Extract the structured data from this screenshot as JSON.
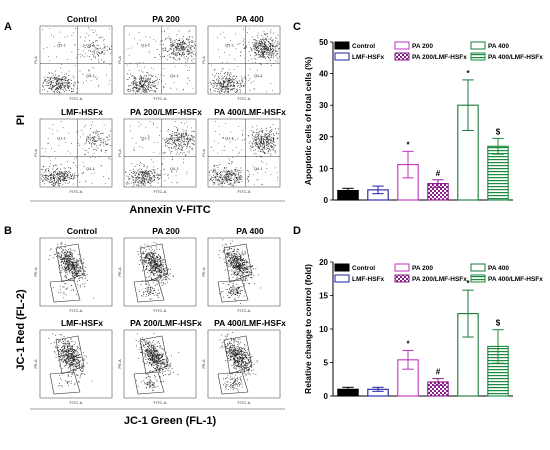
{
  "panels": {
    "A": {
      "letter": "A",
      "y_label": "PI",
      "x_label": "Annexin V-FITC",
      "plots": [
        {
          "title": "Control",
          "quadrants": [
            "Q1-1",
            "Q2-1",
            "Q3-1",
            "Q4-1"
          ]
        },
        {
          "title": "PA 200",
          "quadrants": [
            "Q1-1",
            "Q2-1",
            "Q3-1",
            "Q4-1"
          ]
        },
        {
          "title": "PA 400",
          "quadrants": [
            "Q1-1",
            "Q2-1",
            "Q3-1",
            "Q4-1"
          ]
        },
        {
          "title": "LMF-HSFx",
          "quadrants": [
            "Q1-1",
            "Q2-1",
            "Q3-1",
            "Q4-1"
          ]
        },
        {
          "title": "PA 200/LMF-HSFx",
          "quadrants": [
            "Q1-1",
            "Q2-1",
            "Q3-1",
            "Q4-1"
          ]
        },
        {
          "title": "PA 400/LMF-HSFx",
          "quadrants": [
            "Q1-1",
            "Q2-1",
            "Q3-1",
            "Q4-1"
          ]
        }
      ],
      "axis_small_y": "PI-A",
      "axis_small_x": "FITC-A"
    },
    "B": {
      "letter": "B",
      "y_label": "JC-1 Red (FL-2)",
      "x_label": "JC-1 Green (FL-1)",
      "plots": [
        {
          "title": "Control"
        },
        {
          "title": "PA 200"
        },
        {
          "title": "PA 400"
        },
        {
          "title": "LMF-HSFx"
        },
        {
          "title": "PA 200/LMF-HSFx"
        },
        {
          "title": "PA 400/LMF-HSFx"
        }
      ],
      "axis_small_y": "PE-A",
      "axis_small_x": "FITC-A"
    }
  },
  "chart_data": [
    {
      "panel": "C",
      "type": "bar",
      "ylabel": "Apoptotic cells of total cells (%)",
      "xlabel": "",
      "ylim": [
        0,
        50
      ],
      "yticks": [
        0,
        10,
        20,
        30,
        40,
        50
      ],
      "legend_placement": "top",
      "categories": [
        "Control",
        "LMF-HSFx",
        "PA 200",
        "PA 200/LMF-HSFx",
        "PA 400",
        "PA 400/LMF-HSFx"
      ],
      "values": [
        3.0,
        3.2,
        11.2,
        5.2,
        30.0,
        17.0
      ],
      "errors": [
        0.7,
        1.2,
        4.2,
        1.2,
        8.0,
        2.5
      ],
      "annotations": [
        "",
        "",
        "*",
        "#",
        "*",
        "$"
      ],
      "colors": [
        "#000000",
        "#1f1fa8",
        "#c033c0",
        "#8a1f8a",
        "#1a7a3c",
        "#1a8a3c"
      ],
      "fills": [
        "solid",
        "open",
        "open",
        "checker",
        "open",
        "hlines"
      ]
    },
    {
      "panel": "D",
      "type": "bar",
      "ylabel": "Relative change to control (fold)",
      "xlabel": "",
      "ylim": [
        0,
        20
      ],
      "yticks": [
        0,
        5,
        10,
        15,
        20
      ],
      "legend_placement": "top",
      "categories": [
        "Control",
        "LMF-HSFx",
        "PA 200",
        "PA 200/LMF-HSFx",
        "PA 400",
        "PA 400/LMF-HSFx"
      ],
      "values": [
        1.0,
        1.0,
        5.4,
        2.1,
        12.3,
        7.4
      ],
      "errors": [
        0.3,
        0.3,
        1.4,
        0.5,
        3.5,
        2.5
      ],
      "annotations": [
        "",
        "",
        "*",
        "#",
        "*",
        "$"
      ],
      "colors": [
        "#000000",
        "#1f1fa8",
        "#c033c0",
        "#8a1f8a",
        "#1a7a3c",
        "#1a8a3c"
      ],
      "fills": [
        "solid",
        "open",
        "open",
        "checker",
        "open",
        "hlines"
      ]
    }
  ]
}
